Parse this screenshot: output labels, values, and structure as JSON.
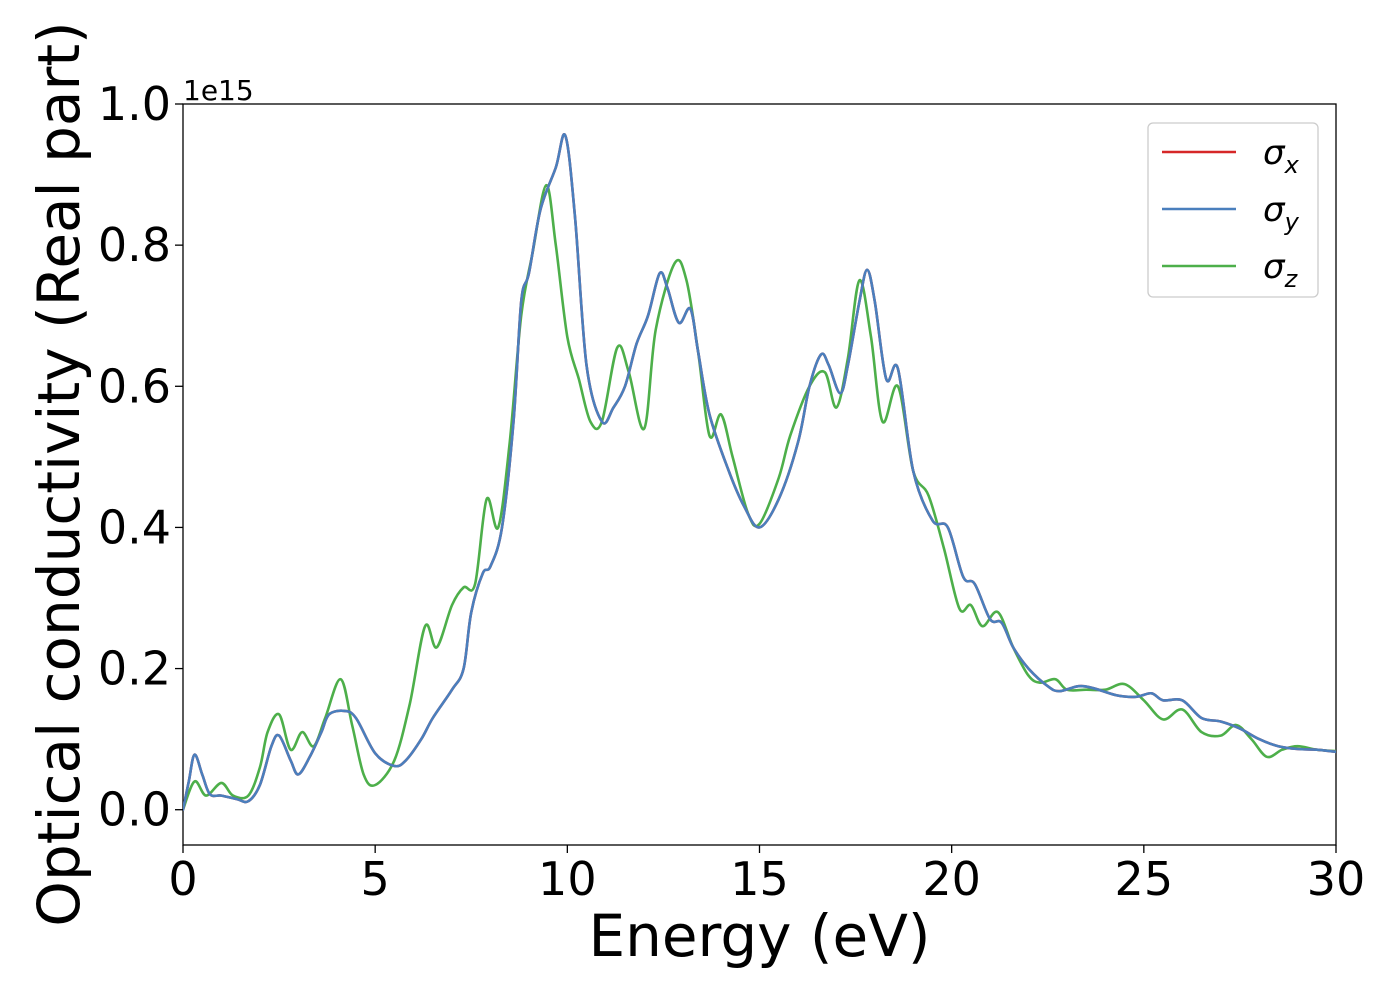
{
  "chart_data": {
    "type": "line",
    "title": "",
    "xlabel": "Energy (eV)",
    "ylabel": "Optical conductivity (Real part)",
    "y_offset_label": "1e15",
    "xlim": [
      0,
      30
    ],
    "ylim": [
      -0.05,
      1.0
    ],
    "x_ticks": [
      "0",
      "5",
      "10",
      "15",
      "20",
      "25",
      "30"
    ],
    "y_ticks": [
      "0.0",
      "0.2",
      "0.4",
      "0.6",
      "0.8",
      "1.0"
    ],
    "grid": false,
    "legend_position": "top-right",
    "series": [
      {
        "name": "σx",
        "name_base": "σ",
        "name_sub": "x",
        "color": "#d62728",
        "points": [
          [
            0,
            0.0
          ],
          [
            0.15,
            0.04
          ],
          [
            0.3,
            0.078
          ],
          [
            0.5,
            0.05
          ],
          [
            0.7,
            0.022
          ],
          [
            1.0,
            0.02
          ],
          [
            1.4,
            0.015
          ],
          [
            1.7,
            0.012
          ],
          [
            2.0,
            0.035
          ],
          [
            2.3,
            0.09
          ],
          [
            2.5,
            0.105
          ],
          [
            2.8,
            0.07
          ],
          [
            3.0,
            0.05
          ],
          [
            3.3,
            0.075
          ],
          [
            3.6,
            0.11
          ],
          [
            3.8,
            0.135
          ],
          [
            4.2,
            0.14
          ],
          [
            4.5,
            0.13
          ],
          [
            5.0,
            0.08
          ],
          [
            5.5,
            0.062
          ],
          [
            5.8,
            0.07
          ],
          [
            6.2,
            0.1
          ],
          [
            6.5,
            0.13
          ],
          [
            7.0,
            0.17
          ],
          [
            7.3,
            0.2
          ],
          [
            7.5,
            0.28
          ],
          [
            7.8,
            0.335
          ],
          [
            8.0,
            0.345
          ],
          [
            8.3,
            0.4
          ],
          [
            8.6,
            0.55
          ],
          [
            8.8,
            0.72
          ],
          [
            9.0,
            0.76
          ],
          [
            9.3,
            0.85
          ],
          [
            9.7,
            0.91
          ],
          [
            9.95,
            0.955
          ],
          [
            10.2,
            0.84
          ],
          [
            10.5,
            0.63
          ],
          [
            10.9,
            0.55
          ],
          [
            11.2,
            0.57
          ],
          [
            11.5,
            0.6
          ],
          [
            11.8,
            0.66
          ],
          [
            12.1,
            0.7
          ],
          [
            12.4,
            0.76
          ],
          [
            12.6,
            0.74
          ],
          [
            12.9,
            0.69
          ],
          [
            13.2,
            0.71
          ],
          [
            13.4,
            0.65
          ],
          [
            13.7,
            0.56
          ],
          [
            14.2,
            0.48
          ],
          [
            14.6,
            0.43
          ],
          [
            15.0,
            0.4
          ],
          [
            15.5,
            0.44
          ],
          [
            16.0,
            0.52
          ],
          [
            16.3,
            0.6
          ],
          [
            16.6,
            0.645
          ],
          [
            16.8,
            0.63
          ],
          [
            17.1,
            0.59
          ],
          [
            17.3,
            0.63
          ],
          [
            17.6,
            0.72
          ],
          [
            17.8,
            0.765
          ],
          [
            18.0,
            0.72
          ],
          [
            18.3,
            0.61
          ],
          [
            18.6,
            0.625
          ],
          [
            19.0,
            0.48
          ],
          [
            19.5,
            0.41
          ],
          [
            19.9,
            0.4
          ],
          [
            20.3,
            0.33
          ],
          [
            20.6,
            0.32
          ],
          [
            21.0,
            0.27
          ],
          [
            21.3,
            0.265
          ],
          [
            21.6,
            0.23
          ],
          [
            22.0,
            0.2
          ],
          [
            22.5,
            0.175
          ],
          [
            22.8,
            0.168
          ],
          [
            23.3,
            0.175
          ],
          [
            23.7,
            0.172
          ],
          [
            24.3,
            0.162
          ],
          [
            24.8,
            0.16
          ],
          [
            25.2,
            0.165
          ],
          [
            25.5,
            0.155
          ],
          [
            26.0,
            0.155
          ],
          [
            26.5,
            0.13
          ],
          [
            27.0,
            0.125
          ],
          [
            27.5,
            0.115
          ],
          [
            28.0,
            0.1
          ],
          [
            28.5,
            0.09
          ],
          [
            29.0,
            0.086
          ],
          [
            29.5,
            0.085
          ],
          [
            30.0,
            0.082
          ]
        ]
      },
      {
        "name": "σy",
        "name_base": "σ",
        "name_sub": "y",
        "color": "#4a7fbd",
        "points": [
          [
            0,
            0.0
          ],
          [
            0.15,
            0.04
          ],
          [
            0.3,
            0.078
          ],
          [
            0.5,
            0.05
          ],
          [
            0.7,
            0.022
          ],
          [
            1.0,
            0.02
          ],
          [
            1.4,
            0.015
          ],
          [
            1.7,
            0.012
          ],
          [
            2.0,
            0.035
          ],
          [
            2.3,
            0.09
          ],
          [
            2.5,
            0.105
          ],
          [
            2.8,
            0.07
          ],
          [
            3.0,
            0.05
          ],
          [
            3.3,
            0.075
          ],
          [
            3.6,
            0.11
          ],
          [
            3.8,
            0.135
          ],
          [
            4.2,
            0.14
          ],
          [
            4.5,
            0.13
          ],
          [
            5.0,
            0.08
          ],
          [
            5.5,
            0.062
          ],
          [
            5.8,
            0.07
          ],
          [
            6.2,
            0.1
          ],
          [
            6.5,
            0.13
          ],
          [
            7.0,
            0.17
          ],
          [
            7.3,
            0.2
          ],
          [
            7.5,
            0.28
          ],
          [
            7.8,
            0.335
          ],
          [
            8.0,
            0.345
          ],
          [
            8.3,
            0.4
          ],
          [
            8.6,
            0.55
          ],
          [
            8.8,
            0.72
          ],
          [
            9.0,
            0.76
          ],
          [
            9.3,
            0.85
          ],
          [
            9.7,
            0.91
          ],
          [
            9.95,
            0.955
          ],
          [
            10.2,
            0.84
          ],
          [
            10.5,
            0.63
          ],
          [
            10.9,
            0.55
          ],
          [
            11.2,
            0.57
          ],
          [
            11.5,
            0.6
          ],
          [
            11.8,
            0.66
          ],
          [
            12.1,
            0.7
          ],
          [
            12.4,
            0.76
          ],
          [
            12.6,
            0.74
          ],
          [
            12.9,
            0.69
          ],
          [
            13.2,
            0.71
          ],
          [
            13.4,
            0.65
          ],
          [
            13.7,
            0.56
          ],
          [
            14.2,
            0.48
          ],
          [
            14.6,
            0.43
          ],
          [
            15.0,
            0.4
          ],
          [
            15.5,
            0.44
          ],
          [
            16.0,
            0.52
          ],
          [
            16.3,
            0.6
          ],
          [
            16.6,
            0.645
          ],
          [
            16.8,
            0.63
          ],
          [
            17.1,
            0.59
          ],
          [
            17.3,
            0.63
          ],
          [
            17.6,
            0.72
          ],
          [
            17.8,
            0.765
          ],
          [
            18.0,
            0.72
          ],
          [
            18.3,
            0.61
          ],
          [
            18.6,
            0.625
          ],
          [
            19.0,
            0.48
          ],
          [
            19.5,
            0.41
          ],
          [
            19.9,
            0.4
          ],
          [
            20.3,
            0.33
          ],
          [
            20.6,
            0.32
          ],
          [
            21.0,
            0.27
          ],
          [
            21.3,
            0.265
          ],
          [
            21.6,
            0.23
          ],
          [
            22.0,
            0.2
          ],
          [
            22.5,
            0.175
          ],
          [
            22.8,
            0.168
          ],
          [
            23.3,
            0.175
          ],
          [
            23.7,
            0.172
          ],
          [
            24.3,
            0.162
          ],
          [
            24.8,
            0.16
          ],
          [
            25.2,
            0.165
          ],
          [
            25.5,
            0.155
          ],
          [
            26.0,
            0.155
          ],
          [
            26.5,
            0.13
          ],
          [
            27.0,
            0.125
          ],
          [
            27.5,
            0.115
          ],
          [
            28.0,
            0.1
          ],
          [
            28.5,
            0.09
          ],
          [
            29.0,
            0.086
          ],
          [
            29.5,
            0.085
          ],
          [
            30.0,
            0.082
          ]
        ]
      },
      {
        "name": "σz",
        "name_base": "σ",
        "name_sub": "z",
        "color": "#4daf4a",
        "points": [
          [
            0,
            0.0
          ],
          [
            0.3,
            0.04
          ],
          [
            0.6,
            0.02
          ],
          [
            1.0,
            0.038
          ],
          [
            1.3,
            0.02
          ],
          [
            1.7,
            0.02
          ],
          [
            2.0,
            0.06
          ],
          [
            2.2,
            0.11
          ],
          [
            2.5,
            0.135
          ],
          [
            2.8,
            0.085
          ],
          [
            3.1,
            0.11
          ],
          [
            3.4,
            0.09
          ],
          [
            3.7,
            0.13
          ],
          [
            4.1,
            0.185
          ],
          [
            4.4,
            0.12
          ],
          [
            4.7,
            0.05
          ],
          [
            5.0,
            0.035
          ],
          [
            5.5,
            0.07
          ],
          [
            5.9,
            0.15
          ],
          [
            6.3,
            0.26
          ],
          [
            6.6,
            0.23
          ],
          [
            7.0,
            0.29
          ],
          [
            7.3,
            0.315
          ],
          [
            7.6,
            0.32
          ],
          [
            7.9,
            0.44
          ],
          [
            8.2,
            0.4
          ],
          [
            8.5,
            0.52
          ],
          [
            8.8,
            0.7
          ],
          [
            9.1,
            0.79
          ],
          [
            9.45,
            0.885
          ],
          [
            9.7,
            0.8
          ],
          [
            10.0,
            0.67
          ],
          [
            10.3,
            0.61
          ],
          [
            10.6,
            0.55
          ],
          [
            10.9,
            0.55
          ],
          [
            11.3,
            0.655
          ],
          [
            11.6,
            0.62
          ],
          [
            12.0,
            0.54
          ],
          [
            12.3,
            0.68
          ],
          [
            12.8,
            0.775
          ],
          [
            13.1,
            0.75
          ],
          [
            13.4,
            0.65
          ],
          [
            13.7,
            0.53
          ],
          [
            14.0,
            0.56
          ],
          [
            14.3,
            0.5
          ],
          [
            14.7,
            0.42
          ],
          [
            15.0,
            0.405
          ],
          [
            15.5,
            0.47
          ],
          [
            15.8,
            0.53
          ],
          [
            16.3,
            0.6
          ],
          [
            16.7,
            0.62
          ],
          [
            17.0,
            0.57
          ],
          [
            17.3,
            0.64
          ],
          [
            17.6,
            0.75
          ],
          [
            17.9,
            0.67
          ],
          [
            18.2,
            0.55
          ],
          [
            18.6,
            0.6
          ],
          [
            19.0,
            0.48
          ],
          [
            19.4,
            0.445
          ],
          [
            19.8,
            0.37
          ],
          [
            20.2,
            0.285
          ],
          [
            20.5,
            0.29
          ],
          [
            20.8,
            0.26
          ],
          [
            21.2,
            0.28
          ],
          [
            21.6,
            0.23
          ],
          [
            22.0,
            0.19
          ],
          [
            22.3,
            0.18
          ],
          [
            22.7,
            0.185
          ],
          [
            23.0,
            0.17
          ],
          [
            23.5,
            0.17
          ],
          [
            24.0,
            0.17
          ],
          [
            24.5,
            0.178
          ],
          [
            25.0,
            0.155
          ],
          [
            25.5,
            0.128
          ],
          [
            26.0,
            0.142
          ],
          [
            26.5,
            0.11
          ],
          [
            27.0,
            0.105
          ],
          [
            27.4,
            0.12
          ],
          [
            27.8,
            0.1
          ],
          [
            28.2,
            0.075
          ],
          [
            28.6,
            0.085
          ],
          [
            29.0,
            0.09
          ],
          [
            29.5,
            0.085
          ],
          [
            30.0,
            0.083
          ]
        ]
      }
    ]
  }
}
